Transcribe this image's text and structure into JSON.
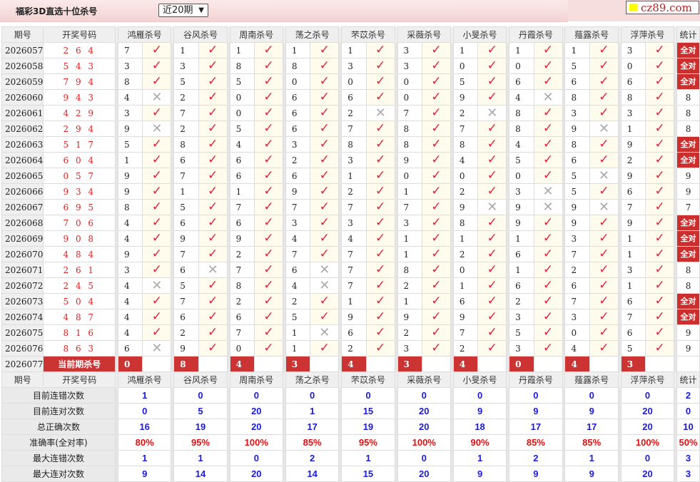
{
  "header": {
    "title": "福彩3D直选十位杀号",
    "period_select": "近20期",
    "logo_text": "cz89.com"
  },
  "columns": {
    "issue": "期号",
    "draw": "开奖号码",
    "stat": "统计",
    "experts": [
      "鸿雁杀号",
      "谷风杀号",
      "周南杀号",
      "荡之杀号",
      "芣苡杀号",
      "采薇杀号",
      "小旻杀号",
      "丹霞杀号",
      "薤露杀号",
      "浮萍杀号"
    ]
  },
  "icons": {
    "hit": "checkmark-icon",
    "miss": "cross-icon"
  },
  "colors": {
    "hit": "#e0223a",
    "miss": "#aaaaaa",
    "badge": "#cc2d2d",
    "stat_value": "#1a1adc",
    "rate": "#e01010"
  },
  "rows": [
    {
      "issue": "2026057",
      "draw": "2 6 4",
      "kills": [
        [
          7,
          true
        ],
        [
          1,
          true
        ],
        [
          1,
          true
        ],
        [
          1,
          true
        ],
        [
          1,
          true
        ],
        [
          3,
          true
        ],
        [
          1,
          true
        ],
        [
          1,
          true
        ],
        [
          1,
          true
        ],
        [
          3,
          true
        ]
      ],
      "stat": "全对"
    },
    {
      "issue": "2026058",
      "draw": "5 4 3",
      "kills": [
        [
          3,
          true
        ],
        [
          3,
          true
        ],
        [
          8,
          true
        ],
        [
          8,
          true
        ],
        [
          3,
          true
        ],
        [
          3,
          true
        ],
        [
          0,
          true
        ],
        [
          0,
          true
        ],
        [
          5,
          true
        ],
        [
          0,
          true
        ]
      ],
      "stat": "全对"
    },
    {
      "issue": "2026059",
      "draw": "7 9 4",
      "kills": [
        [
          8,
          true
        ],
        [
          5,
          true
        ],
        [
          5,
          true
        ],
        [
          0,
          true
        ],
        [
          0,
          true
        ],
        [
          0,
          true
        ],
        [
          5,
          true
        ],
        [
          6,
          true
        ],
        [
          6,
          true
        ],
        [
          6,
          true
        ]
      ],
      "stat": "全对"
    },
    {
      "issue": "2026060",
      "draw": "9 4 3",
      "kills": [
        [
          4,
          false
        ],
        [
          2,
          true
        ],
        [
          0,
          true
        ],
        [
          6,
          true
        ],
        [
          6,
          true
        ],
        [
          0,
          true
        ],
        [
          9,
          true
        ],
        [
          4,
          false
        ],
        [
          8,
          true
        ],
        [
          8,
          true
        ]
      ],
      "stat": "8"
    },
    {
      "issue": "2026061",
      "draw": "4 2 9",
      "kills": [
        [
          3,
          true
        ],
        [
          7,
          true
        ],
        [
          0,
          true
        ],
        [
          6,
          true
        ],
        [
          2,
          false
        ],
        [
          7,
          true
        ],
        [
          2,
          false
        ],
        [
          8,
          true
        ],
        [
          3,
          true
        ],
        [
          3,
          true
        ]
      ],
      "stat": "8"
    },
    {
      "issue": "2026062",
      "draw": "2 9 4",
      "kills": [
        [
          9,
          false
        ],
        [
          2,
          true
        ],
        [
          5,
          true
        ],
        [
          6,
          true
        ],
        [
          7,
          true
        ],
        [
          8,
          true
        ],
        [
          7,
          true
        ],
        [
          8,
          true
        ],
        [
          9,
          false
        ],
        [
          1,
          true
        ]
      ],
      "stat": "8"
    },
    {
      "issue": "2026063",
      "draw": "5 1 7",
      "kills": [
        [
          5,
          true
        ],
        [
          8,
          true
        ],
        [
          4,
          true
        ],
        [
          3,
          true
        ],
        [
          8,
          true
        ],
        [
          8,
          true
        ],
        [
          8,
          true
        ],
        [
          4,
          true
        ],
        [
          8,
          true
        ],
        [
          9,
          true
        ]
      ],
      "stat": "全对"
    },
    {
      "issue": "2026064",
      "draw": "6 0 4",
      "kills": [
        [
          1,
          true
        ],
        [
          6,
          true
        ],
        [
          6,
          true
        ],
        [
          2,
          true
        ],
        [
          3,
          true
        ],
        [
          9,
          true
        ],
        [
          4,
          true
        ],
        [
          5,
          true
        ],
        [
          6,
          true
        ],
        [
          2,
          true
        ]
      ],
      "stat": "全对"
    },
    {
      "issue": "2026065",
      "draw": "0 5 7",
      "kills": [
        [
          9,
          true
        ],
        [
          7,
          true
        ],
        [
          6,
          true
        ],
        [
          6,
          true
        ],
        [
          1,
          true
        ],
        [
          0,
          true
        ],
        [
          0,
          true
        ],
        [
          0,
          true
        ],
        [
          5,
          false
        ],
        [
          9,
          true
        ]
      ],
      "stat": "9"
    },
    {
      "issue": "2026066",
      "draw": "9 3 4",
      "kills": [
        [
          9,
          true
        ],
        [
          1,
          true
        ],
        [
          1,
          true
        ],
        [
          9,
          true
        ],
        [
          2,
          true
        ],
        [
          1,
          true
        ],
        [
          2,
          true
        ],
        [
          3,
          false
        ],
        [
          5,
          true
        ],
        [
          6,
          true
        ]
      ],
      "stat": "9"
    },
    {
      "issue": "2026067",
      "draw": "6 9 5",
      "kills": [
        [
          8,
          true
        ],
        [
          5,
          true
        ],
        [
          7,
          true
        ],
        [
          7,
          true
        ],
        [
          7,
          true
        ],
        [
          7,
          true
        ],
        [
          9,
          false
        ],
        [
          9,
          false
        ],
        [
          9,
          false
        ],
        [
          7,
          true
        ]
      ],
      "stat": "7"
    },
    {
      "issue": "2026068",
      "draw": "7 0 6",
      "kills": [
        [
          4,
          true
        ],
        [
          6,
          true
        ],
        [
          6,
          true
        ],
        [
          3,
          true
        ],
        [
          3,
          true
        ],
        [
          3,
          true
        ],
        [
          8,
          true
        ],
        [
          9,
          true
        ],
        [
          9,
          true
        ],
        [
          9,
          true
        ]
      ],
      "stat": "全对"
    },
    {
      "issue": "2026069",
      "draw": "9 0 8",
      "kills": [
        [
          4,
          true
        ],
        [
          9,
          true
        ],
        [
          9,
          true
        ],
        [
          4,
          true
        ],
        [
          4,
          true
        ],
        [
          1,
          true
        ],
        [
          1,
          true
        ],
        [
          1,
          true
        ],
        [
          3,
          true
        ],
        [
          1,
          true
        ]
      ],
      "stat": "全对"
    },
    {
      "issue": "2026070",
      "draw": "4 8 4",
      "kills": [
        [
          9,
          true
        ],
        [
          7,
          true
        ],
        [
          2,
          true
        ],
        [
          7,
          true
        ],
        [
          7,
          true
        ],
        [
          1,
          true
        ],
        [
          2,
          true
        ],
        [
          6,
          true
        ],
        [
          7,
          true
        ],
        [
          1,
          true
        ]
      ],
      "stat": "全对"
    },
    {
      "issue": "2026071",
      "draw": "2 6 1",
      "kills": [
        [
          3,
          true
        ],
        [
          6,
          false
        ],
        [
          7,
          true
        ],
        [
          6,
          false
        ],
        [
          7,
          true
        ],
        [
          8,
          true
        ],
        [
          0,
          true
        ],
        [
          1,
          true
        ],
        [
          2,
          true
        ],
        [
          3,
          true
        ]
      ],
      "stat": "8"
    },
    {
      "issue": "2026072",
      "draw": "2 4 5",
      "kills": [
        [
          4,
          false
        ],
        [
          5,
          true
        ],
        [
          8,
          true
        ],
        [
          4,
          false
        ],
        [
          7,
          true
        ],
        [
          2,
          true
        ],
        [
          1,
          true
        ],
        [
          6,
          true
        ],
        [
          6,
          true
        ],
        [
          1,
          true
        ]
      ],
      "stat": "8"
    },
    {
      "issue": "2026073",
      "draw": "5 0 4",
      "kills": [
        [
          4,
          true
        ],
        [
          7,
          true
        ],
        [
          2,
          true
        ],
        [
          2,
          true
        ],
        [
          1,
          true
        ],
        [
          1,
          true
        ],
        [
          6,
          true
        ],
        [
          2,
          true
        ],
        [
          7,
          true
        ],
        [
          6,
          true
        ]
      ],
      "stat": "全对"
    },
    {
      "issue": "2026074",
      "draw": "4 8 7",
      "kills": [
        [
          4,
          true
        ],
        [
          6,
          true
        ],
        [
          6,
          true
        ],
        [
          5,
          true
        ],
        [
          9,
          true
        ],
        [
          9,
          true
        ],
        [
          9,
          true
        ],
        [
          3,
          true
        ],
        [
          3,
          true
        ],
        [
          7,
          true
        ]
      ],
      "stat": "全对"
    },
    {
      "issue": "2026075",
      "draw": "8 1 6",
      "kills": [
        [
          4,
          true
        ],
        [
          2,
          true
        ],
        [
          7,
          true
        ],
        [
          1,
          false
        ],
        [
          6,
          true
        ],
        [
          2,
          true
        ],
        [
          7,
          true
        ],
        [
          5,
          true
        ],
        [
          0,
          true
        ],
        [
          6,
          true
        ]
      ],
      "stat": "9"
    },
    {
      "issue": "2026076",
      "draw": "8 6 3",
      "kills": [
        [
          6,
          false
        ],
        [
          9,
          true
        ],
        [
          0,
          true
        ],
        [
          1,
          true
        ],
        [
          2,
          true
        ],
        [
          3,
          true
        ],
        [
          2,
          true
        ],
        [
          3,
          true
        ],
        [
          4,
          true
        ],
        [
          5,
          true
        ]
      ],
      "stat": "9"
    }
  ],
  "current": {
    "issue": "2026077",
    "label": "当前期杀号",
    "kills": [
      "0",
      "8",
      "4",
      "3",
      "4",
      "3",
      "4",
      "0",
      "4",
      "3"
    ]
  },
  "stats": [
    {
      "label": "目前连错次数",
      "values": [
        "1",
        "0",
        "0",
        "0",
        "0",
        "0",
        "0",
        "0",
        "0",
        "0",
        "2"
      ]
    },
    {
      "label": "目前连对次数",
      "values": [
        "0",
        "5",
        "20",
        "1",
        "15",
        "20",
        "9",
        "9",
        "9",
        "20",
        "0"
      ]
    },
    {
      "label": "总正确次数",
      "values": [
        "16",
        "19",
        "20",
        "17",
        "19",
        "20",
        "18",
        "17",
        "17",
        "20",
        "10"
      ]
    },
    {
      "label": "准确率(全对率)",
      "values": [
        "80%",
        "95%",
        "100%",
        "85%",
        "95%",
        "100%",
        "90%",
        "85%",
        "85%",
        "100%",
        "50%"
      ]
    },
    {
      "label": "最大连错次数",
      "values": [
        "1",
        "1",
        "0",
        "2",
        "1",
        "0",
        "1",
        "2",
        "1",
        "0",
        "3"
      ]
    },
    {
      "label": "最大连对次数",
      "values": [
        "9",
        "14",
        "20",
        "14",
        "15",
        "20",
        "9",
        "9",
        "9",
        "20",
        "3"
      ]
    }
  ]
}
